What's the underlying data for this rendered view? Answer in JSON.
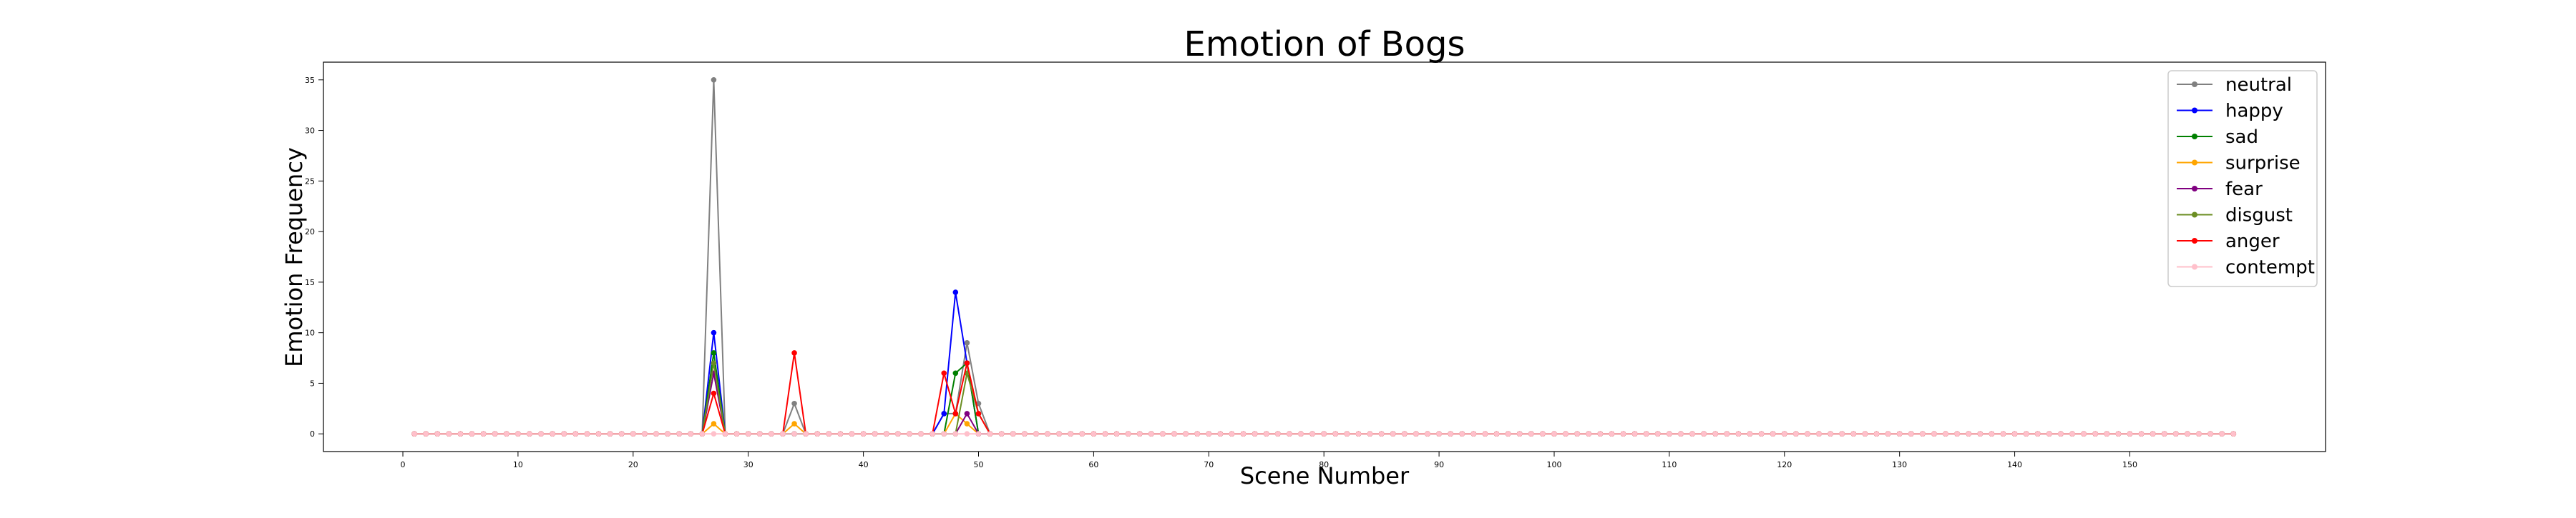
{
  "chart_data": {
    "type": "line",
    "title": "Emotion of Bogs",
    "xlabel": "Scene Number",
    "ylabel": "Emotion Frequency",
    "xlim": [
      -6.9,
      167
    ],
    "ylim": [
      -1.75,
      36.75
    ],
    "x_ticks": [
      0,
      10,
      20,
      30,
      40,
      50,
      60,
      70,
      80,
      90,
      100,
      110,
      120,
      130,
      140,
      150
    ],
    "y_ticks": [
      0,
      5,
      10,
      15,
      20,
      25,
      30,
      35
    ],
    "grid": false,
    "legend_position": "top-right",
    "x_start": 1,
    "x_end": 159,
    "series": [
      {
        "name": "neutral",
        "color": "#808080",
        "points": [
          [
            26,
            0
          ],
          [
            27,
            35
          ],
          [
            28,
            0
          ],
          [
            33,
            0
          ],
          [
            34,
            3
          ],
          [
            35,
            0
          ],
          [
            46,
            0
          ],
          [
            47,
            2
          ],
          [
            48,
            2
          ],
          [
            49,
            9
          ],
          [
            50,
            3
          ],
          [
            51,
            0
          ]
        ]
      },
      {
        "name": "happy",
        "color": "#0000ff",
        "points": [
          [
            26,
            0
          ],
          [
            27,
            10
          ],
          [
            28,
            0
          ],
          [
            46,
            0
          ],
          [
            47,
            2
          ],
          [
            48,
            14
          ],
          [
            49,
            7
          ],
          [
            50,
            0
          ]
        ]
      },
      {
        "name": "sad",
        "color": "#008000",
        "points": [
          [
            26,
            0
          ],
          [
            27,
            8
          ],
          [
            28,
            0
          ],
          [
            47,
            0
          ],
          [
            48,
            6
          ],
          [
            49,
            7
          ],
          [
            50,
            0
          ]
        ]
      },
      {
        "name": "surprise",
        "color": "#ffa500",
        "points": [
          [
            26,
            0
          ],
          [
            27,
            1
          ],
          [
            28,
            0
          ],
          [
            33,
            0
          ],
          [
            34,
            1
          ],
          [
            35,
            0
          ],
          [
            47,
            0
          ],
          [
            48,
            2
          ],
          [
            49,
            1
          ],
          [
            50,
            0
          ]
        ]
      },
      {
        "name": "fear",
        "color": "#800080",
        "points": [
          [
            26,
            0
          ],
          [
            27,
            6
          ],
          [
            28,
            0
          ],
          [
            48,
            0
          ],
          [
            49,
            2
          ],
          [
            50,
            0
          ]
        ]
      },
      {
        "name": "disgust",
        "color": "#6b8e23",
        "points": [
          [
            26,
            0
          ],
          [
            27,
            7
          ],
          [
            28,
            0
          ],
          [
            48,
            0
          ],
          [
            49,
            6
          ],
          [
            50,
            2
          ],
          [
            51,
            0
          ]
        ]
      },
      {
        "name": "anger",
        "color": "#ff0000",
        "points": [
          [
            26,
            0
          ],
          [
            27,
            4
          ],
          [
            28,
            0
          ],
          [
            33,
            0
          ],
          [
            34,
            8
          ],
          [
            35,
            0
          ],
          [
            46,
            0
          ],
          [
            47,
            6
          ],
          [
            48,
            2
          ],
          [
            49,
            7
          ],
          [
            50,
            2
          ],
          [
            51,
            0
          ]
        ]
      },
      {
        "name": "contempt",
        "color": "#ffc0cb",
        "points": []
      }
    ]
  }
}
